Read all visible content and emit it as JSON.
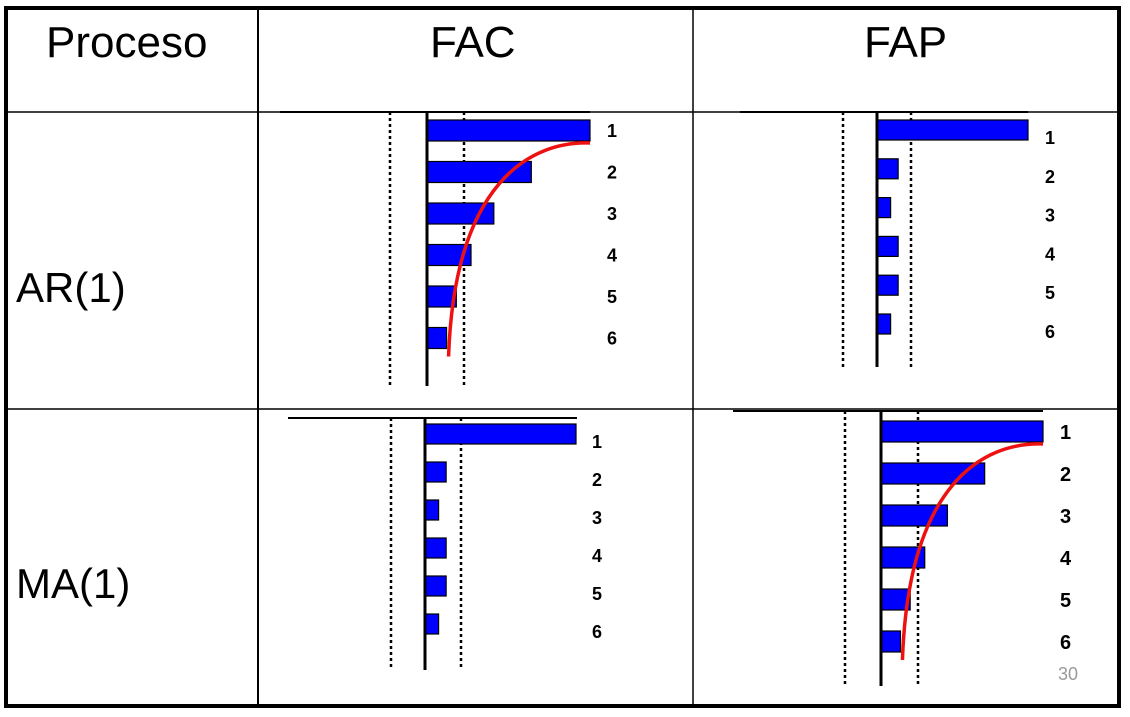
{
  "table": {
    "header": {
      "col0": "Proceso",
      "col1": "FAC",
      "col2": "FAP"
    },
    "rows": [
      {
        "label": "AR(1)"
      },
      {
        "label": "MA(1)"
      }
    ]
  },
  "page_number": "30",
  "colors": {
    "bar": "#0000ff",
    "curve": "#ee1111",
    "border": "#000000"
  },
  "chart_data": [
    {
      "type": "bar",
      "orientation": "horizontal",
      "process": "AR(1)",
      "function": "FAC",
      "categories": [
        "1",
        "2",
        "3",
        "4",
        "5",
        "6"
      ],
      "values": [
        1.0,
        0.64,
        0.41,
        0.27,
        0.18,
        0.12
      ],
      "confidence_band": 0.23,
      "decay_curve": true
    },
    {
      "type": "bar",
      "orientation": "horizontal",
      "process": "AR(1)",
      "function": "FAP",
      "categories": [
        "1",
        "2",
        "3",
        "4",
        "5",
        "6"
      ],
      "values": [
        1.0,
        0.14,
        0.09,
        0.14,
        0.14,
        0.09
      ],
      "confidence_band": 0.23,
      "decay_curve": false
    },
    {
      "type": "bar",
      "orientation": "horizontal",
      "process": "MA(1)",
      "function": "FAC",
      "categories": [
        "1",
        "2",
        "3",
        "4",
        "5",
        "6"
      ],
      "values": [
        1.0,
        0.14,
        0.09,
        0.14,
        0.14,
        0.09
      ],
      "confidence_band": 0.23,
      "decay_curve": false
    },
    {
      "type": "bar",
      "orientation": "horizontal",
      "process": "MA(1)",
      "function": "FAP",
      "categories": [
        "1",
        "2",
        "3",
        "4",
        "5",
        "6"
      ],
      "values": [
        1.0,
        0.64,
        0.41,
        0.27,
        0.18,
        0.12
      ],
      "confidence_band": 0.23,
      "decay_curve": true
    }
  ]
}
